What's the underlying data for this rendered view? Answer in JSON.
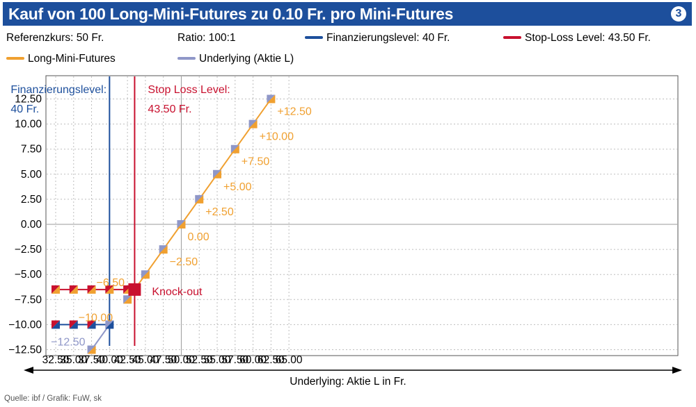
{
  "header": {
    "title": "Kauf von 100 Long-Mini-Futures zu 0.10 Fr. pro Mini-Futures",
    "badge": "3"
  },
  "info": {
    "referenzkurs": "Referenzkurs: 50 Fr.",
    "ratio": "Ratio: 100:1"
  },
  "legend": {
    "finanzierungslevel": "Finanzierungslevel: 40 Fr.",
    "stop_loss": "Stop-Loss Level: 43.50 Fr.",
    "long_mini_futures": "Long-Mini-Futures",
    "underlying": "Underlying (Aktie L)"
  },
  "colors": {
    "title_bg": "#1d4f9c",
    "long_mini_futures": "#f0a030",
    "underlying": "#8f97c8",
    "finanzierungslevel": "#1d4f9c",
    "stop_loss": "#c8102e"
  },
  "chart_data": {
    "type": "line",
    "xlabel": "Underlying: Aktie L in Fr.",
    "ylabel": "",
    "xlim": [
      32.5,
      65.0
    ],
    "ylim": [
      -12.5,
      12.5
    ],
    "x_ticks": [
      "32.50",
      "35.00",
      "37.50",
      "40.00",
      "42.50",
      "45.00",
      "47.50",
      "50.00",
      "52.50",
      "55.00",
      "57.50",
      "60.00",
      "62.50",
      "65.00"
    ],
    "y_ticks": [
      "12.50",
      "10.00",
      "7.50",
      "5.00",
      "2.50",
      "0.00",
      "−2.50",
      "−5.00",
      "−7.50",
      "−10.00",
      "−12.50"
    ],
    "grid": true,
    "series": [
      {
        "name": "Long-Mini-Futures",
        "x": [
          42.5,
          43.5,
          45,
          47.5,
          50,
          52.5,
          55,
          57.5,
          60,
          62.5
        ],
        "y": [
          -7.5,
          -6.5,
          -5,
          -2.5,
          0,
          2.5,
          5,
          7.5,
          10,
          12.5
        ]
      },
      {
        "name": "Underlying (Aktie L)",
        "x": [
          37.5,
          40
        ],
        "y": [
          -12.5,
          -10
        ]
      },
      {
        "name": "Stop-Loss Level",
        "x": [
          32.5,
          43.5
        ],
        "y": [
          -6.5,
          -6.5
        ]
      },
      {
        "name": "Finanzierungslevel",
        "x": [
          32.5,
          40
        ],
        "y": [
          -10,
          -10
        ]
      }
    ],
    "vertical_lines": [
      {
        "name": "Finanzierungslevel",
        "x": 40,
        "label_line1": "Finanzierungslevel:",
        "label_line2": "40 Fr."
      },
      {
        "name": "Stop-Loss Level",
        "x": 43.5,
        "label_line1": "Stop Loss Level:",
        "label_line2": "43.50 Fr."
      }
    ],
    "markers": [
      {
        "x": 32.5,
        "y": -6.5,
        "top": "#c8102e",
        "bottom": "#f0a030"
      },
      {
        "x": 35,
        "y": -6.5,
        "top": "#c8102e",
        "bottom": "#f0a030"
      },
      {
        "x": 37.5,
        "y": -6.5,
        "top": "#c8102e",
        "bottom": "#f0a030"
      },
      {
        "x": 40,
        "y": -6.5,
        "top": "#c8102e",
        "bottom": "#f0a030"
      },
      {
        "x": 42.5,
        "y": -6.5,
        "top": "#c8102e",
        "bottom": "#f0a030"
      },
      {
        "x": 32.5,
        "y": -10,
        "top": "#c8102e",
        "bottom": "#1d4f9c"
      },
      {
        "x": 35,
        "y": -10,
        "top": "#c8102e",
        "bottom": "#1d4f9c"
      },
      {
        "x": 37.5,
        "y": -10,
        "top": "#c8102e",
        "bottom": "#1d4f9c"
      },
      {
        "x": 37.5,
        "y": -12.5,
        "top": "#8f97c8",
        "bottom": "#f0a030"
      },
      {
        "x": 40,
        "y": -10,
        "top": "#8f97c8",
        "bottom": "#1d4f9c"
      },
      {
        "x": 42.5,
        "y": -7.5,
        "top": "#8f97c8",
        "bottom": "#f0a030"
      },
      {
        "x": 45,
        "y": -5,
        "top": "#8f97c8",
        "bottom": "#f0a030"
      },
      {
        "x": 47.5,
        "y": -2.5,
        "top": "#8f97c8",
        "bottom": "#f0a030"
      },
      {
        "x": 50,
        "y": 0,
        "top": "#8f97c8",
        "bottom": "#f0a030"
      },
      {
        "x": 52.5,
        "y": 2.5,
        "top": "#8f97c8",
        "bottom": "#f0a030"
      },
      {
        "x": 55,
        "y": 5,
        "top": "#8f97c8",
        "bottom": "#f0a030"
      },
      {
        "x": 57.5,
        "y": 7.5,
        "top": "#8f97c8",
        "bottom": "#f0a030"
      },
      {
        "x": 60,
        "y": 10,
        "top": "#8f97c8",
        "bottom": "#f0a030"
      },
      {
        "x": 62.5,
        "y": 12.5,
        "top": "#8f97c8",
        "bottom": "#f0a030"
      }
    ],
    "knockout": {
      "x": 43.5,
      "y": -6.5,
      "label": "Knock-out"
    },
    "annotations": [
      {
        "text": "+12.50",
        "x": 62.5,
        "y": 12.5,
        "color": "#f0a030",
        "pos": "br"
      },
      {
        "text": "+10.00",
        "x": 60,
        "y": 10,
        "color": "#f0a030",
        "pos": "br"
      },
      {
        "text": "+7.50",
        "x": 57.5,
        "y": 7.5,
        "color": "#f0a030",
        "pos": "br"
      },
      {
        "text": "+5.00",
        "x": 55,
        "y": 5,
        "color": "#f0a030",
        "pos": "br"
      },
      {
        "text": "+2.50",
        "x": 52.5,
        "y": 2.5,
        "color": "#f0a030",
        "pos": "br"
      },
      {
        "text": "0.00",
        "x": 50,
        "y": 0,
        "color": "#f0a030",
        "pos": "br"
      },
      {
        "text": "−2.50",
        "x": 47.5,
        "y": -2.5,
        "color": "#f0a030",
        "pos": "br"
      },
      {
        "text": "−6.50",
        "x": 37.5,
        "y": -6.5,
        "color": "#f0a030",
        "pos": "tr"
      },
      {
        "text": "−10.00",
        "x": 35,
        "y": -10,
        "color": "#f0a030",
        "pos": "tr"
      },
      {
        "text": "−12.50",
        "x": 37.5,
        "y": -12.5,
        "color": "#8f97c8",
        "pos": "l"
      }
    ]
  },
  "source": "Quelle: ibf / Grafik: FuW, sk"
}
